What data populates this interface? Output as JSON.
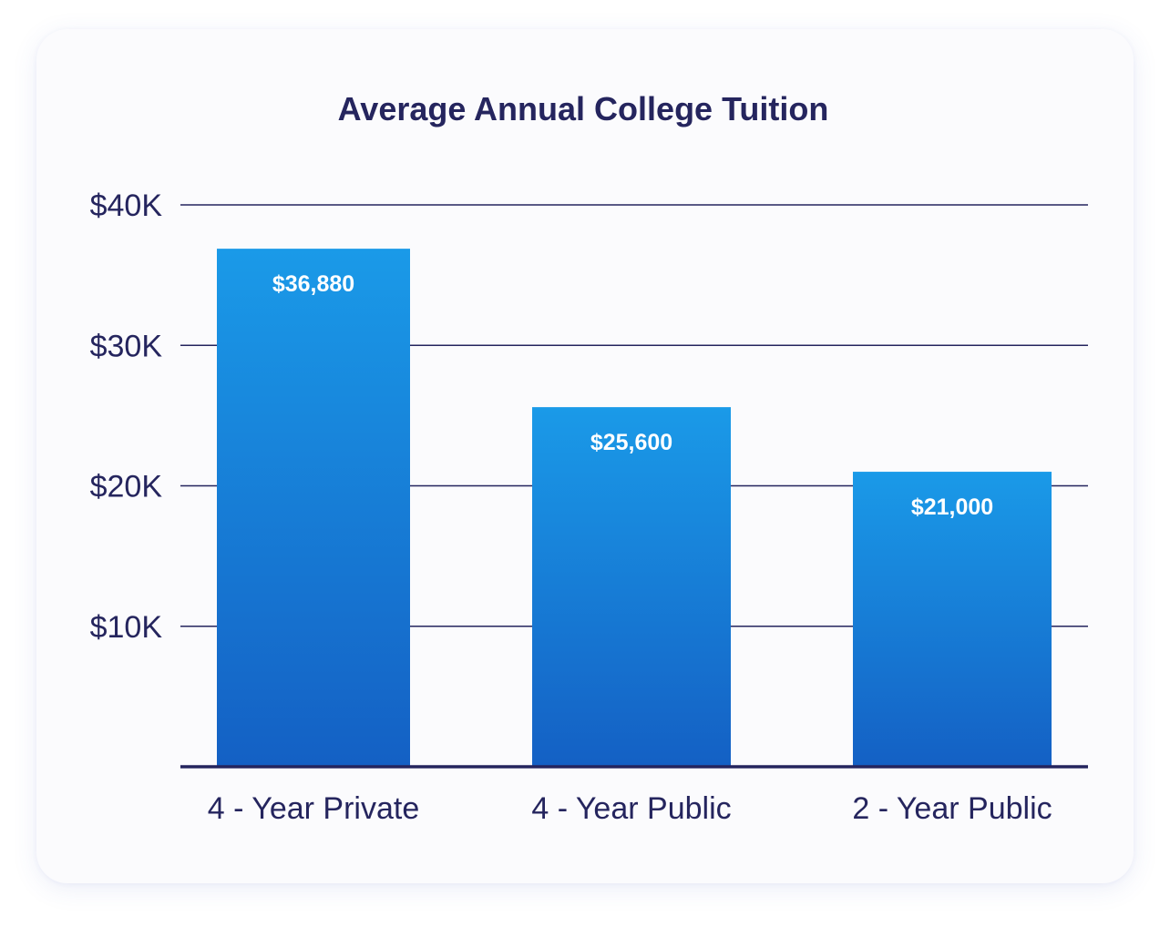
{
  "chart_data": {
    "type": "bar",
    "title": "Average Annual College Tuition",
    "xlabel": "",
    "ylabel": "",
    "categories": [
      "4 - Year Private",
      "4 - Year Public",
      "2 - Year Public"
    ],
    "values": [
      36880,
      25600,
      21000
    ],
    "data_labels": [
      "$36,880",
      "$25,600",
      "$21,000"
    ],
    "ylim": [
      0,
      40000
    ],
    "yticks": [
      {
        "value": 10000,
        "label": "$10K"
      },
      {
        "value": 20000,
        "label": "$20K"
      },
      {
        "value": 30000,
        "label": "$30K"
      },
      {
        "value": 40000,
        "label": "$40K"
      }
    ],
    "grid": true,
    "legend": "none",
    "colors": {
      "bar_top": "#1a9ae8",
      "bar_bottom": "#1460c4",
      "text": "#25255e",
      "gridline": "#25255e"
    }
  }
}
